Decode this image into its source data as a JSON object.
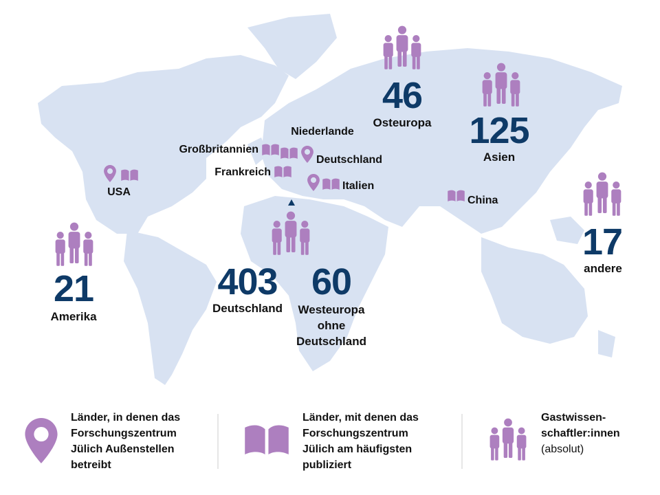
{
  "regions": [
    {
      "value": 46,
      "label": [
        "Osteuropa"
      ]
    },
    {
      "value": 125,
      "label": [
        "Asien"
      ]
    },
    {
      "value": 17,
      "label": [
        "andere"
      ]
    },
    {
      "value": 21,
      "label": [
        "Amerika"
      ]
    },
    {
      "value": 403,
      "label": [
        "Deutschland"
      ]
    },
    {
      "value": 60,
      "label": [
        "Westeuropa",
        "ohne",
        "Deutschland"
      ]
    }
  ],
  "countries": [
    "USA",
    "Großbritannien",
    "Niederlande",
    "Deutschland",
    "Frankreich",
    "Italien",
    "China"
  ],
  "legend": [
    {
      "lines": [
        "Länder, in denen das",
        "Forschungszentrum",
        "Jülich Außenstellen",
        "betreibt"
      ]
    },
    {
      "lines": [
        "Länder, mit denen das",
        "Forschungszentrum",
        "Jülich am häufigsten",
        "publiziert"
      ]
    },
    {
      "lines": [
        "Gastwissen-",
        "schaftler:innen"
      ],
      "note": "(absolut)"
    }
  ]
}
